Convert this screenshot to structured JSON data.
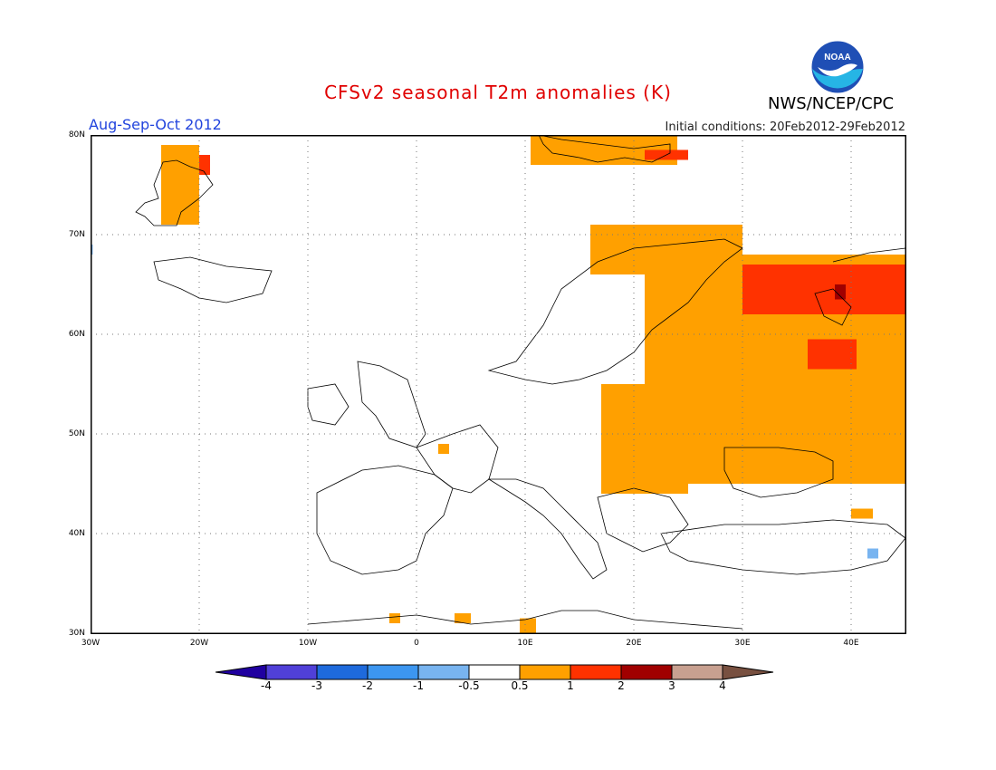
{
  "header": {
    "title": "CFSv2 seasonal T2m anomalies (K)",
    "period": "Aug-Sep-Oct 2012",
    "initial_conditions": "Initial conditions: 20Feb2012-29Feb2012",
    "agency": "NWS/NCEP/CPC",
    "logo_text": "NOAA"
  },
  "map": {
    "lon_range": [
      -30,
      45
    ],
    "lat_range": [
      30,
      80
    ],
    "lat_ticks": [
      "80N",
      "70N",
      "60N",
      "50N",
      "40N",
      "30N"
    ],
    "lon_ticks": [
      "30W",
      "20W",
      "10W",
      "0",
      "10E",
      "20E",
      "30E",
      "40E"
    ],
    "anomaly_regions": [
      {
        "lon": [
          -23.5,
          -20
        ],
        "lat": [
          71,
          79
        ],
        "category": "0.5-1"
      },
      {
        "lon": [
          -20,
          -19
        ],
        "lat": [
          76,
          78
        ],
        "category": "1-2"
      },
      {
        "lon": [
          10.5,
          24
        ],
        "lat": [
          77,
          80
        ],
        "category": "0.5-1"
      },
      {
        "lon": [
          21,
          25
        ],
        "lat": [
          77.5,
          78.5
        ],
        "category": "1-2"
      },
      {
        "lon": [
          16,
          30
        ],
        "lat": [
          66,
          71
        ],
        "category": "0.5-1"
      },
      {
        "lon": [
          21,
          45
        ],
        "lat": [
          45,
          68
        ],
        "category": "0.5-1"
      },
      {
        "lon": [
          17,
          25
        ],
        "lat": [
          44,
          55
        ],
        "category": "0.5-1"
      },
      {
        "lon": [
          30,
          45
        ],
        "lat": [
          62,
          67
        ],
        "category": "1-2"
      },
      {
        "lon": [
          36,
          40.5
        ],
        "lat": [
          56.5,
          59.5
        ],
        "category": "1-2"
      },
      {
        "lon": [
          38.5,
          39.5
        ],
        "lat": [
          63.5,
          65
        ],
        "category": "2-3"
      },
      {
        "lon": [
          2,
          3
        ],
        "lat": [
          48,
          49
        ],
        "category": "0.5-1"
      },
      {
        "lon": [
          40,
          42
        ],
        "lat": [
          41.5,
          42.5
        ],
        "category": "0.5-1"
      },
      {
        "lon": [
          -2.5,
          -1.5
        ],
        "lat": [
          31,
          32
        ],
        "category": "0.5-1"
      },
      {
        "lon": [
          3.5,
          5
        ],
        "lat": [
          31,
          32
        ],
        "category": "0.5-1"
      },
      {
        "lon": [
          9.5,
          11
        ],
        "lat": [
          30,
          31.5
        ],
        "category": "0.5-1"
      },
      {
        "lon": [
          41.5,
          42.5
        ],
        "lat": [
          37.5,
          38.5
        ],
        "category": "-1--0.5"
      },
      {
        "lon": [
          -30,
          -29.8
        ],
        "lat": [
          68,
          69
        ],
        "category": "-1--0.5"
      }
    ]
  },
  "legend": {
    "labels": [
      "-4",
      "-3",
      "-2",
      "-1",
      "-0.5",
      "0.5",
      "1",
      "2",
      "3",
      "4"
    ],
    "colors": [
      "#2000a0",
      "#5040d8",
      "#1e6adc",
      "#3c96f0",
      "#78b4f0",
      "#ffffff",
      "#ffa000",
      "#ff3200",
      "#a00000",
      "#c8a090",
      "#785040"
    ]
  }
}
